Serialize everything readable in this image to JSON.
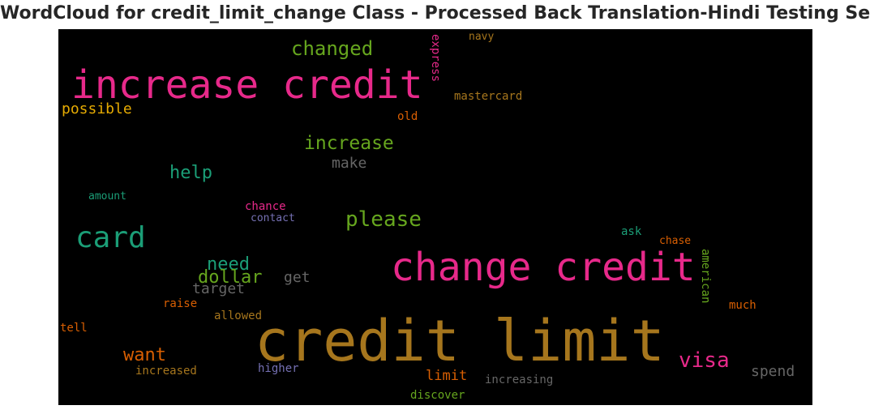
{
  "chart_data": {
    "type": "wordcloud",
    "title": "WordCloud for credit_limit_change Class - Processed Back Translation-Hindi Testing Set",
    "background": "#000000",
    "words": [
      {
        "text": "increase credit",
        "color": "#e7298a"
      },
      {
        "text": "change credit",
        "color": "#e7298a"
      },
      {
        "text": "credit limit",
        "color": "#a6761d"
      },
      {
        "text": "card",
        "color": "#1b9e77"
      },
      {
        "text": "please",
        "color": "#66a61e"
      },
      {
        "text": "changed",
        "color": "#66a61e"
      },
      {
        "text": "increase",
        "color": "#66a61e"
      },
      {
        "text": "help",
        "color": "#1b9e77"
      },
      {
        "text": "make",
        "color": "#666666"
      },
      {
        "text": "possible",
        "color": "#e6ab02"
      },
      {
        "text": "mastercard",
        "color": "#a6761d"
      },
      {
        "text": "old",
        "color": "#d95f02"
      },
      {
        "text": "navy",
        "color": "#a6761d"
      },
      {
        "text": "express",
        "color": "#e7298a"
      },
      {
        "text": "amount",
        "color": "#1b9e77"
      },
      {
        "text": "chance",
        "color": "#e7298a"
      },
      {
        "text": "contact",
        "color": "#7570b3"
      },
      {
        "text": "ask",
        "color": "#1b9e77"
      },
      {
        "text": "chase",
        "color": "#d95f02"
      },
      {
        "text": "american",
        "color": "#66a61e"
      },
      {
        "text": "need",
        "color": "#1b9e77"
      },
      {
        "text": "dollar",
        "color": "#66a61e"
      },
      {
        "text": "target",
        "color": "#666666"
      },
      {
        "text": "get",
        "color": "#666666"
      },
      {
        "text": "raise",
        "color": "#d95f02"
      },
      {
        "text": "allowed",
        "color": "#a6761d"
      },
      {
        "text": "much",
        "color": "#d95f02"
      },
      {
        "text": "tell",
        "color": "#d95f02"
      },
      {
        "text": "want",
        "color": "#d95f02"
      },
      {
        "text": "visa",
        "color": "#e7298a"
      },
      {
        "text": "spend",
        "color": "#666666"
      },
      {
        "text": "increased",
        "color": "#a6761d"
      },
      {
        "text": "higher",
        "color": "#7570b3"
      },
      {
        "text": "limit",
        "color": "#d95f02"
      },
      {
        "text": "increasing",
        "color": "#666666"
      },
      {
        "text": "discover",
        "color": "#66a61e"
      }
    ]
  }
}
